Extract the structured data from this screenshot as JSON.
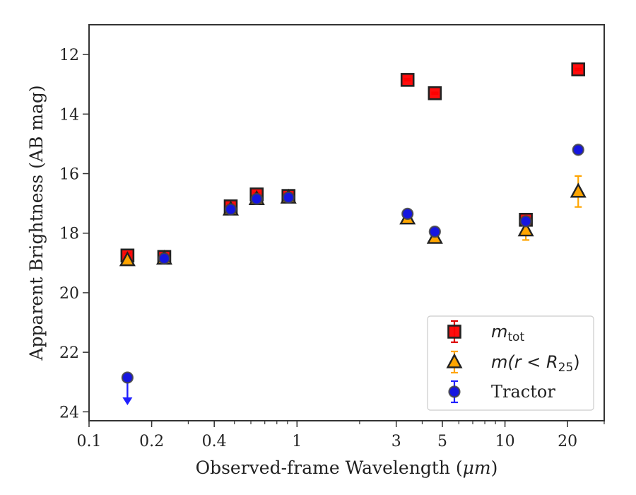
{
  "chart_data": {
    "type": "scatter",
    "xlabel_prefix": "Observed-frame Wavelength (",
    "xlabel_unit": "μm",
    "xlabel_suffix": ")",
    "ylabel": "Apparent Brightness (AB mag)",
    "x_scale": "log",
    "y_inverted": true,
    "xlim": [
      0.1,
      30
    ],
    "ylim": [
      24.3,
      11
    ],
    "x_ticks": [
      {
        "value": 0.1,
        "label": "0.1"
      },
      {
        "value": 0.2,
        "label": "0.2"
      },
      {
        "value": 0.4,
        "label": "0.4"
      },
      {
        "value": 1,
        "label": "1"
      },
      {
        "value": 3,
        "label": "3"
      },
      {
        "value": 5,
        "label": "5"
      },
      {
        "value": 10,
        "label": "10"
      },
      {
        "value": 20,
        "label": "20"
      }
    ],
    "y_ticks": [
      {
        "value": 12,
        "label": "12"
      },
      {
        "value": 14,
        "label": "14"
      },
      {
        "value": 16,
        "label": "16"
      },
      {
        "value": 18,
        "label": "18"
      },
      {
        "value": 20,
        "label": "20"
      },
      {
        "value": 22,
        "label": "22"
      },
      {
        "value": 24,
        "label": "24"
      }
    ],
    "legend_position": "lower-right",
    "series": [
      {
        "name_main": "m",
        "name_sub": "tot",
        "marker": "square",
        "color": "#ff0000",
        "errcolor": "#dd0000",
        "points": [
          {
            "x": 0.153,
            "y": 18.75,
            "err": 0.08
          },
          {
            "x": 0.23,
            "y": 18.8,
            "err": 0.06
          },
          {
            "x": 0.48,
            "y": 17.1,
            "err": 0.08
          },
          {
            "x": 0.64,
            "y": 16.7,
            "err": 0.06
          },
          {
            "x": 0.91,
            "y": 16.75,
            "err": 0.05
          },
          {
            "x": 3.4,
            "y": 12.85,
            "err": 0.03
          },
          {
            "x": 4.6,
            "y": 13.3,
            "err": 0.03
          },
          {
            "x": 12.6,
            "y": 17.55,
            "err": 0.06
          },
          {
            "x": 22.5,
            "y": 12.5,
            "err": 0.03
          }
        ]
      },
      {
        "name_main": "m(r < R",
        "name_sub": "25",
        "name_close": ")",
        "marker": "triangle",
        "color": "#ffa500",
        "errcolor": "#ffa500",
        "points": [
          {
            "x": 0.153,
            "y": 18.9,
            "err": 0.05
          },
          {
            "x": 0.23,
            "y": 18.85,
            "err": 0.05
          },
          {
            "x": 0.48,
            "y": 17.2,
            "err": 0.05
          },
          {
            "x": 0.64,
            "y": 16.85,
            "err": 0.05
          },
          {
            "x": 0.91,
            "y": 16.8,
            "err": 0.05
          },
          {
            "x": 3.4,
            "y": 17.5,
            "err": 0.06
          },
          {
            "x": 4.6,
            "y": 18.15,
            "err": 0.07
          },
          {
            "x": 12.6,
            "y": 17.9,
            "err": 0.33
          },
          {
            "x": 22.5,
            "y": 16.6,
            "err": 0.52
          }
        ]
      },
      {
        "name": "Tractor",
        "marker": "circle",
        "color": "#1515e0",
        "errcolor": "#2020ff",
        "points": [
          {
            "x": 0.153,
            "y": 22.85,
            "upper_limit": true
          },
          {
            "x": 0.23,
            "y": 18.85,
            "err": 0.04
          },
          {
            "x": 0.48,
            "y": 17.2,
            "err": 0.04
          },
          {
            "x": 0.64,
            "y": 16.85,
            "err": 0.04
          },
          {
            "x": 0.91,
            "y": 16.8,
            "err": 0.04
          },
          {
            "x": 3.4,
            "y": 17.35,
            "err": 0.05
          },
          {
            "x": 4.6,
            "y": 17.95,
            "err": 0.05
          },
          {
            "x": 12.6,
            "y": 17.6,
            "err": 0.05
          },
          {
            "x": 22.5,
            "y": 15.2,
            "err": 0.05
          }
        ]
      }
    ]
  }
}
